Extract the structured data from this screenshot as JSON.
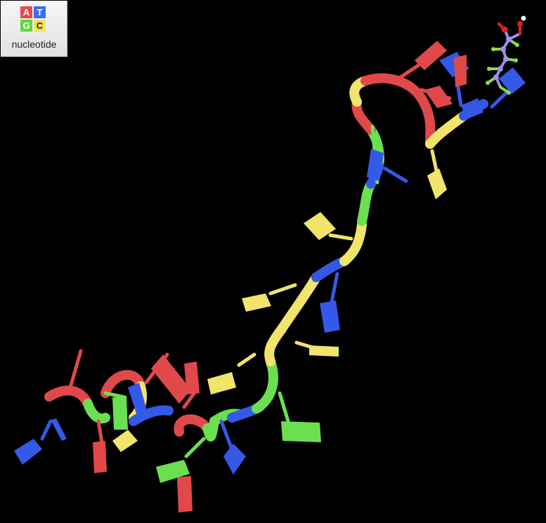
{
  "toolbar": {
    "nucleotide_button": {
      "label": "nucleotide",
      "icon": "nucleotide-color-key-icon",
      "tiles": [
        {
          "letter": "A",
          "color": "#e8494b"
        },
        {
          "letter": "T",
          "color": "#3a6ee8"
        },
        {
          "letter": "G",
          "color": "#5fd83f"
        },
        {
          "letter": "C",
          "color": "#f2e35a"
        }
      ]
    }
  },
  "viewer": {
    "background": "#000000",
    "coloring": "nucleotide",
    "colors": {
      "A": "#e0484a",
      "T": "#3459e6",
      "G": "#6ae050",
      "C": "#f0e46a",
      "ligand_carbon": "#9d8fe6",
      "ligand_hydrogen": "#8ed84a",
      "ligand_oxygen": "#e02020",
      "ligand_polar_h": "#ffffff"
    }
  }
}
